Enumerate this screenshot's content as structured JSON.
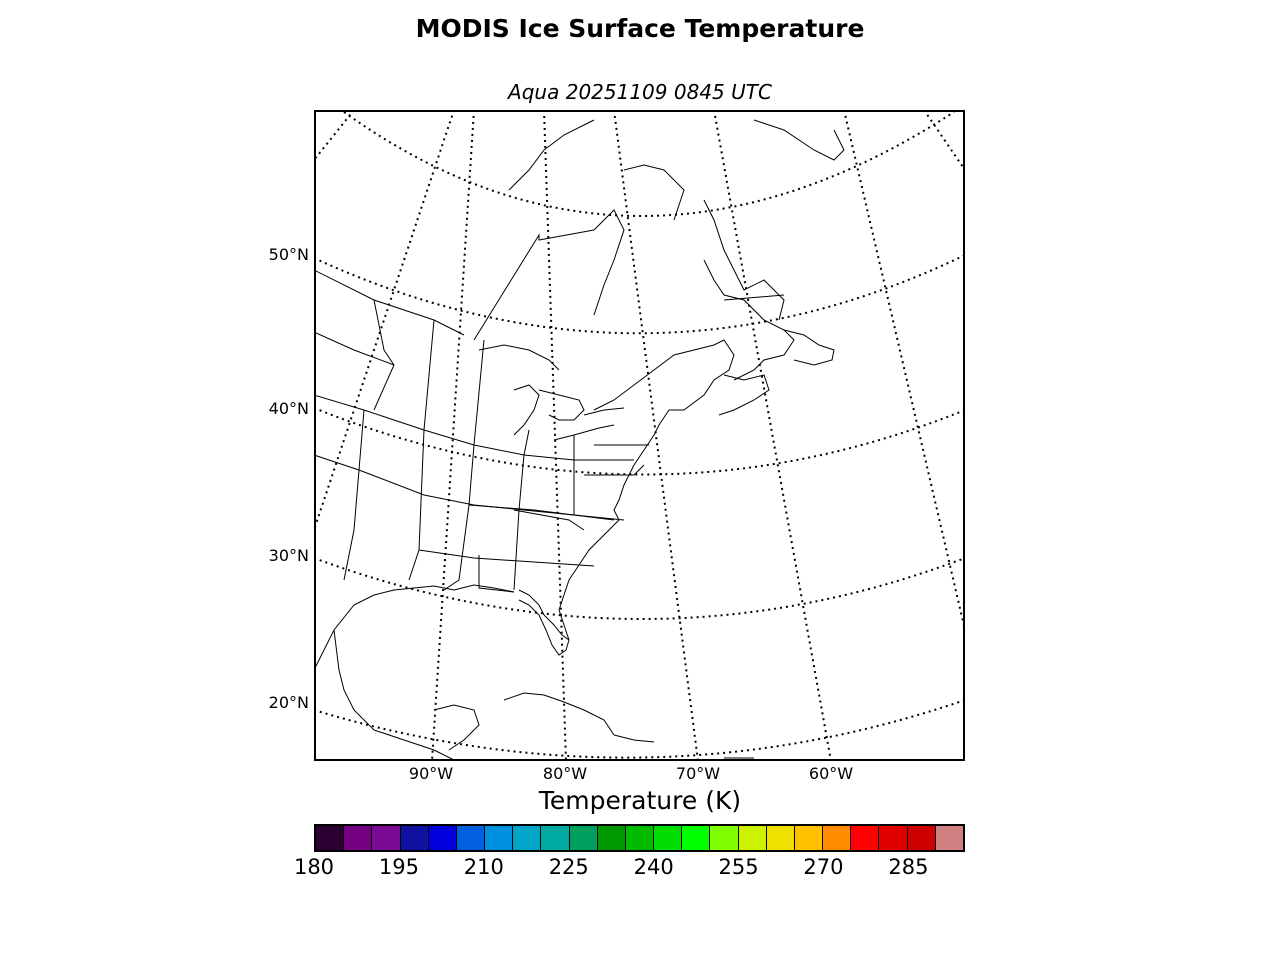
{
  "title": "MODIS Ice Surface Temperature",
  "subtitle": "Aqua 20251109 0845 UTC",
  "map": {
    "projection": "lambert-conformal",
    "region": "Eastern North America",
    "lat_labels": [
      "50°N",
      "40°N",
      "30°N",
      "20°N"
    ],
    "lon_labels": [
      "90°W",
      "80°W",
      "70°W",
      "60°W"
    ],
    "graticule_style": "dotted",
    "background_color": "#ffffff",
    "coastline_color": "#000000"
  },
  "colorbar": {
    "label": "Temperature (K)",
    "ticks": [
      "180",
      "195",
      "210",
      "225",
      "240",
      "255",
      "270",
      "285"
    ],
    "range": [
      180,
      295
    ],
    "step": 5,
    "colors": [
      "#2b0033",
      "#750082",
      "#7b0a95",
      "#1111a0",
      "#0000dd",
      "#0060e0",
      "#0090e0",
      "#00a5c8",
      "#00aaa0",
      "#00a060",
      "#009900",
      "#00bb00",
      "#00dd00",
      "#00ff00",
      "#80ff00",
      "#ccf200",
      "#f0e000",
      "#ffc000",
      "#ff8c00",
      "#ff0000",
      "#e00000",
      "#cc0000",
      "#d08080"
    ]
  }
}
